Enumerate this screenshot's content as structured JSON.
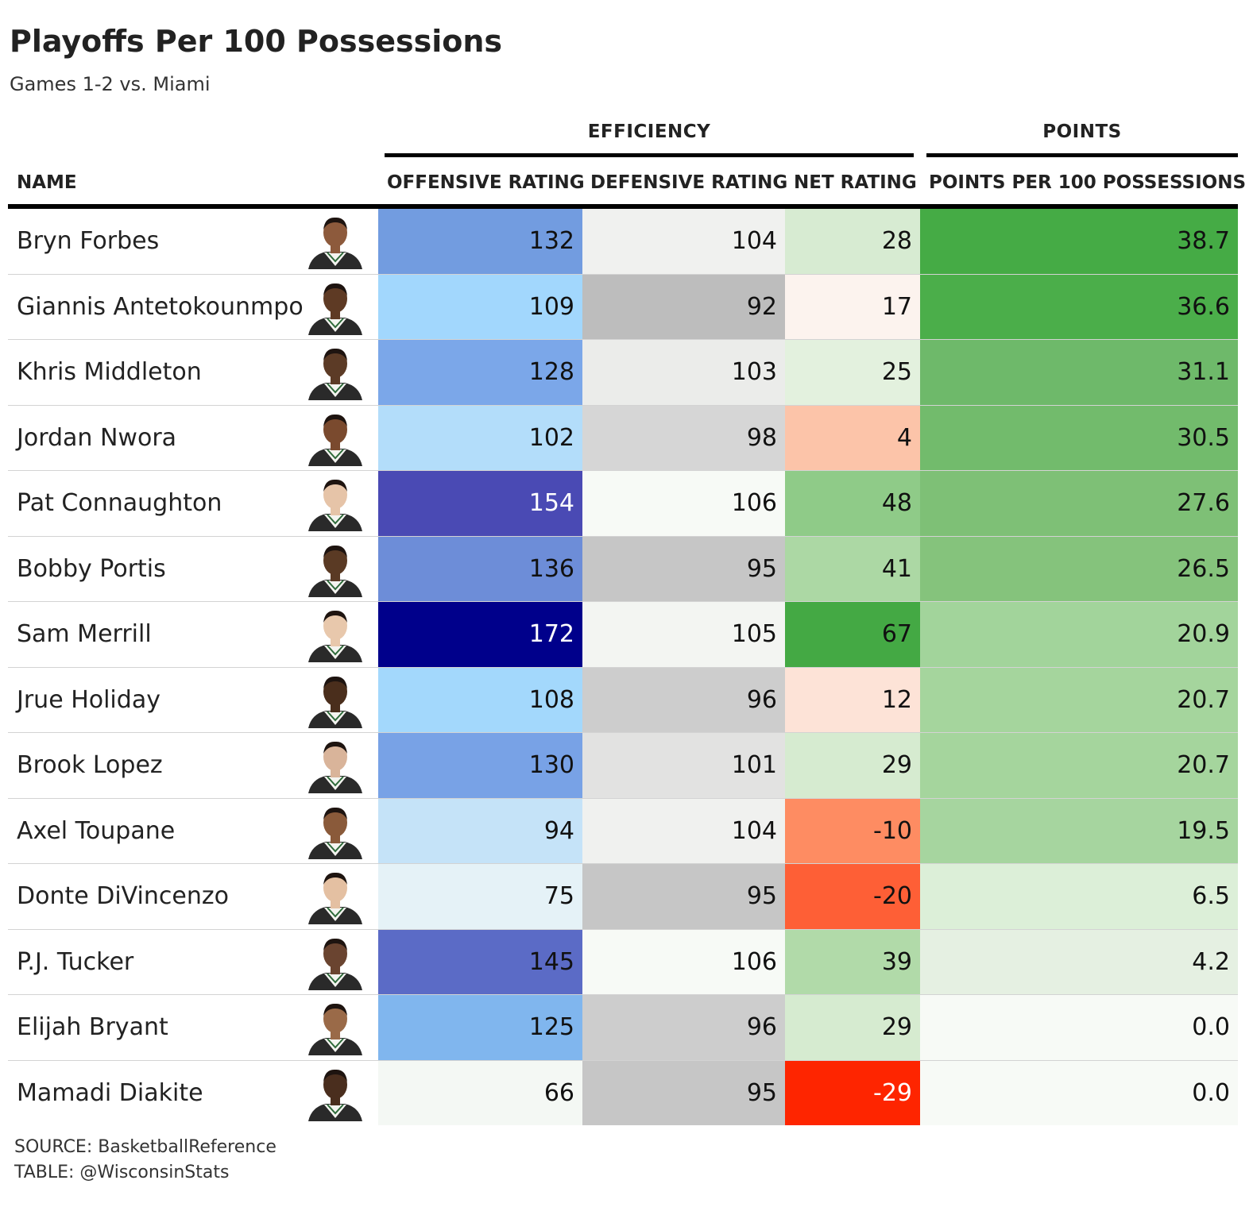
{
  "chart_data": {
    "type": "table",
    "title": "Playoffs Per 100 Possessions",
    "subtitle": "Games 1-2 vs. Miami",
    "spanners": [
      {
        "label": "EFFICIENCY"
      },
      {
        "label": "POINTS"
      }
    ],
    "columns": [
      "NAME",
      "OFFENSIVE RATING",
      "DEFENSIVE RATING",
      "NET RATING",
      "POINTS PER 100 POSSESSIONS"
    ],
    "rows": [
      {
        "name": "Bryn Forbes",
        "off": "132",
        "def": "104",
        "net": "28",
        "pts": "38.7",
        "colors": {
          "off": "#729ce0",
          "def": "#f0f1ef",
          "net": "#d7ebd2",
          "pts": "#45ab45"
        },
        "skin": "#8d5a3c"
      },
      {
        "name": "Giannis Antetokounmpo",
        "off": "109",
        "def": "92",
        "net": "17",
        "pts": "36.6",
        "colors": {
          "off": "#a2d7fd",
          "def": "#bdbdbd",
          "net": "#fcf3ee",
          "pts": "#4bae4a"
        },
        "skin": "#5e3a24"
      },
      {
        "name": "Khris Middleton",
        "off": "128",
        "def": "103",
        "net": "25",
        "pts": "31.1",
        "colors": {
          "off": "#7ba7e9",
          "def": "#ebecea",
          "net": "#e3f1de",
          "pts": "#6eb96a"
        },
        "skin": "#5c3b26"
      },
      {
        "name": "Jordan Nwora",
        "off": "102",
        "def": "98",
        "net": "4",
        "pts": "30.5",
        "colors": {
          "off": "#b3ddfa",
          "def": "#d6d6d6",
          "net": "#fcc4a9",
          "pts": "#72bb6c"
        },
        "skin": "#7a4a2e"
      },
      {
        "name": "Pat Connaughton",
        "off": "154",
        "def": "106",
        "net": "48",
        "pts": "27.6",
        "colors": {
          "off": "#4a4ab4",
          "def": "#f7faf6",
          "net": "#8fcb88",
          "pts": "#7ec076"
        },
        "skin": "#e6c4a8"
      },
      {
        "name": "Bobby Portis",
        "off": "136",
        "def": "95",
        "net": "41",
        "pts": "26.5",
        "colors": {
          "off": "#6d8dd8",
          "def": "#c6c6c6",
          "net": "#acd8a4",
          "pts": "#85c37c"
        },
        "skin": "#5a3a24"
      },
      {
        "name": "Sam Merrill",
        "off": "172",
        "def": "105",
        "net": "67",
        "pts": "20.9",
        "colors": {
          "off": "#00008b",
          "def": "#f3f5f2",
          "net": "#44a944",
          "pts": "#a2d49b"
        },
        "skin": "#e8c8ac"
      },
      {
        "name": "Jrue Holiday",
        "off": "108",
        "def": "96",
        "net": "12",
        "pts": "20.7",
        "colors": {
          "off": "#a3d8fc",
          "def": "#cdcdcd",
          "net": "#fde3d7",
          "pts": "#a5d59d"
        },
        "skin": "#4a2e1c"
      },
      {
        "name": "Brook Lopez",
        "off": "130",
        "def": "101",
        "net": "29",
        "pts": "20.7",
        "colors": {
          "off": "#78a2e6",
          "def": "#e2e2e1",
          "net": "#d6ebd0",
          "pts": "#a5d59d"
        },
        "skin": "#d9b49a"
      },
      {
        "name": "Axel Toupane",
        "off": "94",
        "def": "104",
        "net": "-10",
        "pts": "19.5",
        "colors": {
          "off": "#c5e3f8",
          "def": "#f0f1ef",
          "net": "#fe8c62",
          "pts": "#a6d59f"
        },
        "skin": "#8a5a3a"
      },
      {
        "name": "Donte DiVincenzo",
        "off": "75",
        "def": "95",
        "net": "-20",
        "pts": "6.5",
        "colors": {
          "off": "#e5f2f7",
          "def": "#c6c6c6",
          "net": "#fe5f36",
          "pts": "#dcefd8"
        },
        "skin": "#e4c0a2"
      },
      {
        "name": "P.J. Tucker",
        "off": "145",
        "def": "106",
        "net": "39",
        "pts": "4.2",
        "colors": {
          "off": "#5b6bc6",
          "def": "#f7faf6",
          "net": "#b1daa9",
          "pts": "#e5f0e2"
        },
        "skin": "#6a4430"
      },
      {
        "name": "Elijah Bryant",
        "off": "125",
        "def": "96",
        "net": "29",
        "pts": "0.0",
        "colors": {
          "off": "#80b6ee",
          "def": "#cdcdcd",
          "net": "#d6ebd0",
          "pts": "#f7faf6"
        },
        "skin": "#9a6a48"
      },
      {
        "name": "Mamadi Diakite",
        "off": "66",
        "def": "95",
        "net": "-29",
        "pts": "0.0",
        "colors": {
          "off": "#f4f8f4",
          "def": "#c6c6c6",
          "net": "#fe2500",
          "pts": "#f7faf6"
        },
        "skin": "#4a2e1e"
      }
    ],
    "source": "SOURCE: BasketballReference",
    "credit": "TABLE: @WisconsinStats"
  }
}
